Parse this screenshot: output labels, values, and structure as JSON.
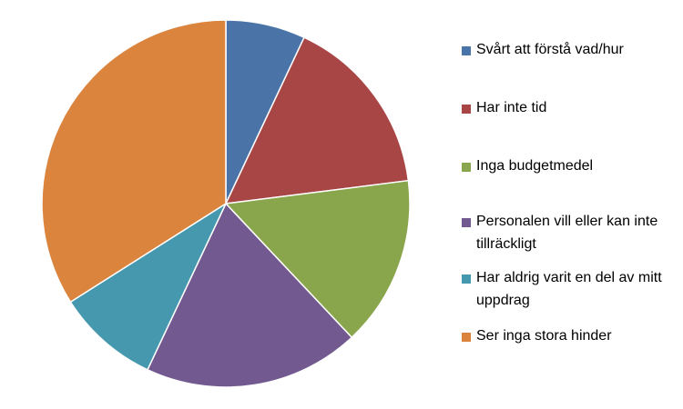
{
  "chart_data": {
    "type": "pie",
    "categories": [
      "Svårt att förstå vad/hur",
      "Har inte tid",
      "Inga budgetmedel",
      "Personalen vill eller kan inte tillräckligt",
      "Har aldrig varit en del av mitt uppdrag",
      "Ser inga stora hinder"
    ],
    "values": [
      7,
      16,
      15,
      19,
      9,
      34
    ],
    "colors": [
      "#4a73a8",
      "#a84645",
      "#8aa64c",
      "#72598f",
      "#4598ae",
      "#da843e"
    ],
    "legend": "right"
  }
}
